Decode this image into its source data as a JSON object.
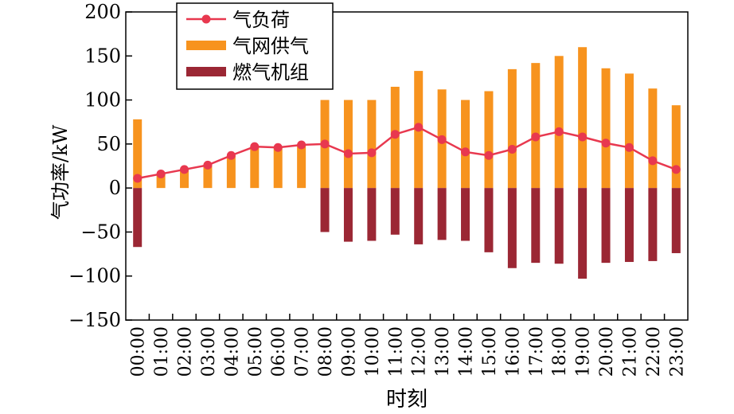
{
  "chart_data": {
    "type": "bar",
    "xlabel": "时刻",
    "ylabel": "气功率/kW",
    "ylim": [
      -150,
      200
    ],
    "yticks": [
      -150,
      -100,
      -50,
      0,
      50,
      100,
      150,
      200
    ],
    "grid": false,
    "legend_position": "top-left",
    "categories": [
      "00:00",
      "01:00",
      "02:00",
      "03:00",
      "04:00",
      "05:00",
      "06:00",
      "07:00",
      "08:00",
      "09:00",
      "10:00",
      "11:00",
      "12:00",
      "13:00",
      "14:00",
      "15:00",
      "16:00",
      "17:00",
      "18:00",
      "19:00",
      "20:00",
      "21:00",
      "22:00",
      "23:00"
    ],
    "series": [
      {
        "name": "气负荷",
        "kind": "line",
        "color": "#e8384f",
        "values": [
          11,
          16,
          21,
          26,
          37,
          47,
          46,
          49,
          50,
          39,
          40,
          61,
          69,
          55,
          41,
          37,
          44,
          58,
          64,
          58,
          51,
          46,
          31,
          21
        ]
      },
      {
        "name": "气网供气",
        "kind": "bar",
        "color": "#f7931e",
        "values": [
          78,
          16,
          21,
          26,
          37,
          47,
          46,
          49,
          100,
          100,
          100,
          115,
          133,
          112,
          100,
          110,
          135,
          142,
          150,
          160,
          136,
          130,
          113,
          94
        ]
      },
      {
        "name": "燃气机组",
        "kind": "bar",
        "color": "#9b2734",
        "values": [
          -67,
          0,
          0,
          0,
          0,
          0,
          0,
          0,
          -50,
          -61,
          -60,
          -53,
          -64,
          -59,
          -60,
          -73,
          -91,
          -85,
          -86,
          -103,
          -85,
          -84,
          -83,
          -74
        ]
      }
    ]
  }
}
